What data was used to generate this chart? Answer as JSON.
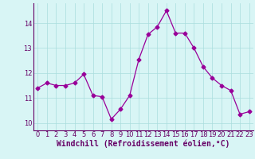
{
  "x": [
    0,
    1,
    2,
    3,
    4,
    5,
    6,
    7,
    8,
    9,
    10,
    11,
    12,
    13,
    14,
    15,
    16,
    17,
    18,
    19,
    20,
    21,
    22,
    23
  ],
  "y": [
    11.4,
    11.6,
    11.5,
    11.5,
    11.6,
    11.95,
    11.1,
    11.05,
    10.15,
    10.55,
    11.1,
    12.55,
    13.55,
    13.85,
    14.5,
    13.6,
    13.6,
    13.0,
    12.25,
    11.8,
    11.5,
    11.3,
    10.35,
    10.45
  ],
  "line_color": "#990099",
  "marker": "D",
  "markersize": 2.5,
  "linewidth": 0.9,
  "xlabel": "Windchill (Refroidissement éolien,°C)",
  "xlabel_fontsize": 7,
  "xlabel_color": "#660066",
  "ylabel_ticks": [
    10,
    11,
    12,
    13,
    14
  ],
  "xtick_labels": [
    "0",
    "1",
    "2",
    "3",
    "4",
    "5",
    "6",
    "7",
    "8",
    "9",
    "10",
    "11",
    "12",
    "13",
    "14",
    "15",
    "16",
    "17",
    "18",
    "19",
    "20",
    "21",
    "22",
    "23"
  ],
  "tick_fontsize": 6,
  "tick_color": "#660066",
  "background_color": "#d8f5f5",
  "grid_color": "#aadddd",
  "ylim": [
    9.7,
    14.8
  ],
  "xlim": [
    -0.5,
    23.5
  ]
}
